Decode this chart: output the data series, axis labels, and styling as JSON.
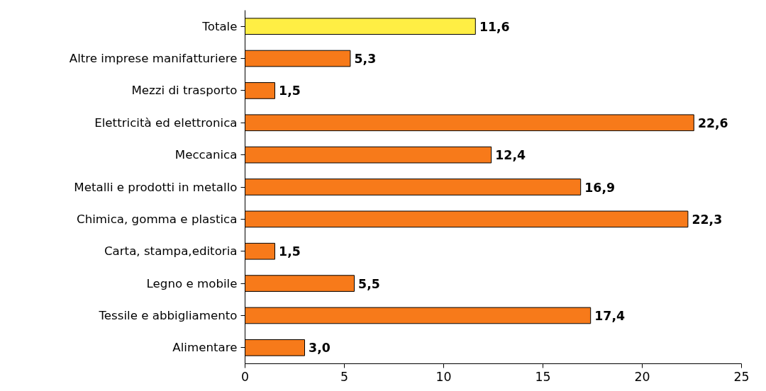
{
  "chart_data": {
    "type": "bar",
    "orientation": "horizontal",
    "categories": [
      "Totale",
      "Altre imprese manifatturiere",
      "Mezzi di trasporto",
      "Elettricità ed elettronica",
      "Meccanica",
      "Metalli e prodotti in metallo",
      "Chimica, gomma e plastica",
      "Carta, stampa,editoria",
      "Legno e mobile",
      "Tessile e abbigliamento",
      "Alimentare"
    ],
    "values": [
      11.6,
      5.3,
      1.5,
      22.6,
      12.4,
      16.9,
      22.3,
      1.5,
      5.5,
      17.4,
      3.0
    ],
    "value_labels": [
      "11,6",
      "5,3",
      "1,5",
      "22,6",
      "12,4",
      "16,9",
      "22,3",
      "1,5",
      "5,5",
      "17,4",
      "3,0"
    ],
    "colors": [
      "#ffee44",
      "#f77a1a",
      "#f77a1a",
      "#f77a1a",
      "#f77a1a",
      "#f77a1a",
      "#f77a1a",
      "#f77a1a",
      "#f77a1a",
      "#f77a1a",
      "#f77a1a"
    ],
    "xlim": [
      0,
      25
    ],
    "xticks": [
      0,
      5,
      10,
      15,
      20,
      25
    ],
    "grid": false
  }
}
